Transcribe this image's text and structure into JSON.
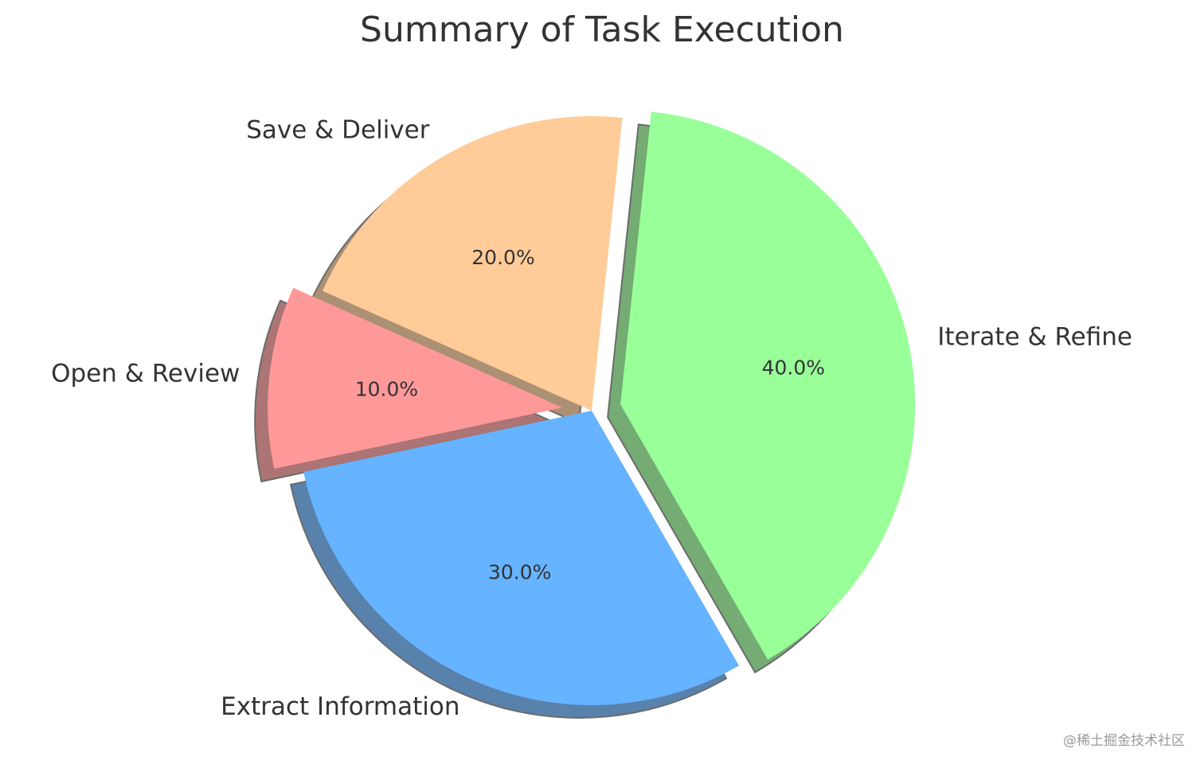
{
  "chart_data": {
    "type": "pie",
    "title": "Summary of Task Execution",
    "categories": [
      "Iterate & Refine",
      "Save & Deliver",
      "Open & Review",
      "Extract Information"
    ],
    "values": [
      40.0,
      20.0,
      10.0,
      30.0
    ],
    "value_labels": [
      "40.0%",
      "20.0%",
      "10.0%",
      "30.0%"
    ],
    "colors": [
      "#99ff99",
      "#ffcc99",
      "#ff9999",
      "#66b3ff"
    ],
    "exploded": [
      true,
      false,
      true,
      false
    ],
    "shadow": true,
    "start_angle_deg": -60,
    "direction": "counterclockwise"
  },
  "watermark": "@稀土掘金技术社区"
}
